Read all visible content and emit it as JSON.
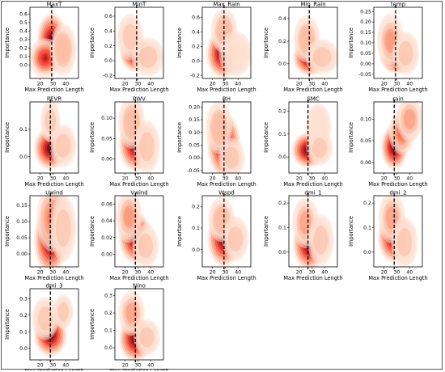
{
  "figure": {
    "xlabel": "Max Prediction Length",
    "ylabel": "Importance",
    "colormap": "Reds",
    "axis_color": "#000000",
    "dashed_line_color": "#000000"
  },
  "chart_data": [
    {
      "type": "kde-density",
      "title": "MaxT",
      "xticks": [
        20,
        30,
        40
      ],
      "yticks": [
        0.0,
        0.1,
        0.2,
        0.3,
        0.4,
        0.5,
        0.6
      ],
      "xlim": [
        12,
        50
      ],
      "ylim": [
        -0.16,
        0.68
      ],
      "vline_x": 29,
      "blobs": [
        {
          "x": 29,
          "y": 0.28,
          "sx": 4.5,
          "sy": 0.13,
          "w": 1.0
        },
        {
          "x": 24,
          "y": 0.08,
          "sx": 5,
          "sy": 0.09,
          "w": 0.8
        },
        {
          "x": 38,
          "y": 0.18,
          "sx": 4,
          "sy": 0.12,
          "w": 0.35
        }
      ]
    },
    {
      "type": "kde-density",
      "title": "MinT",
      "xticks": [
        20,
        30,
        40
      ],
      "yticks": [
        -0.2,
        0.0,
        0.2,
        0.4,
        0.6
      ],
      "xlim": [
        12,
        50
      ],
      "ylim": [
        -0.24,
        0.72
      ],
      "vline_x": 29,
      "blobs": [
        {
          "x": 29,
          "y": 0.08,
          "sx": 5,
          "sy": 0.09,
          "w": 1.0
        },
        {
          "x": 24,
          "y": 0.32,
          "sx": 4,
          "sy": 0.12,
          "w": 0.3
        },
        {
          "x": 38,
          "y": 0.05,
          "sx": 5,
          "sy": 0.1,
          "w": 0.3
        }
      ]
    },
    {
      "type": "kde-density",
      "title": "Max_Rain",
      "xticks": [
        20,
        30,
        40
      ],
      "yticks": [
        -0.2,
        0.0,
        0.2,
        0.4,
        0.6
      ],
      "xlim": [
        12,
        50
      ],
      "ylim": [
        -0.24,
        0.74
      ],
      "vline_x": 29,
      "blobs": [
        {
          "x": 28,
          "y": 0.1,
          "sx": 5,
          "sy": 0.13,
          "w": 1.0
        },
        {
          "x": 29,
          "y": 0.42,
          "sx": 4,
          "sy": 0.12,
          "w": 0.35
        },
        {
          "x": 38,
          "y": 0.1,
          "sx": 5,
          "sy": 0.12,
          "w": 0.25
        }
      ]
    },
    {
      "type": "kde-density",
      "title": "Min_Rain",
      "xticks": [
        20,
        30,
        40
      ],
      "yticks": [
        0.0,
        0.2,
        0.4
      ],
      "xlim": [
        12,
        50
      ],
      "ylim": [
        -0.13,
        0.5
      ],
      "vline_x": 28,
      "blobs": [
        {
          "x": 28,
          "y": 0.05,
          "sx": 5,
          "sy": 0.06,
          "w": 1.0
        },
        {
          "x": 26,
          "y": 0.22,
          "sx": 4,
          "sy": 0.08,
          "w": 0.35
        },
        {
          "x": 38,
          "y": 0.06,
          "sx": 5,
          "sy": 0.06,
          "w": 0.3
        }
      ]
    },
    {
      "type": "kde-density",
      "title": "temp",
      "xticks": [
        20,
        30,
        40
      ],
      "yticks": [
        -0.05,
        0.0,
        0.05,
        0.1,
        0.15,
        0.2,
        0.25
      ],
      "xlim": [
        12,
        50
      ],
      "ylim": [
        -0.07,
        0.27
      ],
      "vline_x": 29,
      "blobs": [
        {
          "x": 30,
          "y": 0.03,
          "sx": 5,
          "sy": 0.03,
          "w": 1.0
        },
        {
          "x": 25,
          "y": 0.11,
          "sx": 4,
          "sy": 0.05,
          "w": 0.45
        },
        {
          "x": 37,
          "y": 0.05,
          "sx": 4,
          "sy": 0.04,
          "w": 0.3
        }
      ]
    },
    {
      "type": "kde-density",
      "title": "PEVR",
      "xticks": [
        20,
        30,
        40
      ],
      "yticks": [
        0.0,
        0.1
      ],
      "xlim": [
        12,
        50
      ],
      "ylim": [
        -0.06,
        0.2
      ],
      "vline_x": 28,
      "blobs": [
        {
          "x": 28,
          "y": 0.03,
          "sx": 5,
          "sy": 0.03,
          "w": 1.0
        },
        {
          "x": 28,
          "y": 0.13,
          "sx": 3,
          "sy": 0.03,
          "w": 0.3
        },
        {
          "x": 38,
          "y": 0.04,
          "sx": 4,
          "sy": 0.03,
          "w": 0.3
        }
      ]
    },
    {
      "type": "kde-density",
      "title": "PWV",
      "xticks": [
        20,
        30,
        40
      ],
      "yticks": [
        0.0,
        0.05,
        0.1
      ],
      "xlim": [
        12,
        50
      ],
      "ylim": [
        -0.035,
        0.14
      ],
      "vline_x": 28,
      "blobs": [
        {
          "x": 28,
          "y": 0.035,
          "sx": 5,
          "sy": 0.025,
          "w": 1.0
        },
        {
          "x": 25,
          "y": 0.09,
          "sx": 4,
          "sy": 0.025,
          "w": 0.35
        },
        {
          "x": 37,
          "y": 0.03,
          "sx": 4,
          "sy": 0.025,
          "w": 0.3
        }
      ]
    },
    {
      "type": "kde-density",
      "title": "RH",
      "xticks": [
        20,
        30,
        40
      ],
      "yticks": [
        -0.05,
        0.0,
        0.05,
        0.1,
        0.15,
        0.2
      ],
      "xlim": [
        12,
        50
      ],
      "ylim": [
        -0.06,
        0.22
      ],
      "vline_x": 29,
      "blobs": [
        {
          "x": 29,
          "y": 0.05,
          "sx": 5,
          "sy": 0.05,
          "w": 1.0
        },
        {
          "x": 25,
          "y": 0.12,
          "sx": 4,
          "sy": 0.04,
          "w": 0.35
        },
        {
          "x": 35,
          "y": 0.0,
          "sx": 4,
          "sy": 0.03,
          "w": 0.3
        }
      ]
    },
    {
      "type": "kde-density",
      "title": "SMC",
      "xticks": [
        20,
        30,
        40
      ],
      "yticks": [
        0.0,
        0.1,
        0.2
      ],
      "xlim": [
        12,
        50
      ],
      "ylim": [
        -0.07,
        0.24
      ],
      "vline_x": 27,
      "blobs": [
        {
          "x": 27,
          "y": 0.03,
          "sx": 5,
          "sy": 0.03,
          "w": 1.0
        },
        {
          "x": 35,
          "y": 0.13,
          "sx": 4,
          "sy": 0.04,
          "w": 0.25
        },
        {
          "x": 36,
          "y": 0.04,
          "sx": 4,
          "sy": 0.03,
          "w": 0.3
        }
      ]
    },
    {
      "type": "kde-density",
      "title": "rain",
      "xticks": [
        20,
        30,
        40
      ],
      "yticks": [
        0.0,
        0.05,
        0.1
      ],
      "xlim": [
        12,
        50
      ],
      "ylim": [
        -0.025,
        0.14
      ],
      "vline_x": 28,
      "blobs": [
        {
          "x": 28,
          "y": 0.035,
          "sx": 4,
          "sy": 0.02,
          "w": 1.0
        },
        {
          "x": 34,
          "y": 0.07,
          "sx": 4,
          "sy": 0.02,
          "w": 0.6
        },
        {
          "x": 40,
          "y": 0.1,
          "sx": 4,
          "sy": 0.02,
          "w": 0.4
        }
      ]
    },
    {
      "type": "kde-density",
      "title": "Uwind",
      "xticks": [
        20,
        30,
        40
      ],
      "yticks": [
        0.0,
        0.05,
        0.1,
        0.15
      ],
      "xlim": [
        12,
        50
      ],
      "ylim": [
        -0.04,
        0.18
      ],
      "vline_x": 28,
      "blobs": [
        {
          "x": 28,
          "y": 0.04,
          "sx": 5,
          "sy": 0.04,
          "w": 1.0
        },
        {
          "x": 30,
          "y": 0.11,
          "sx": 5,
          "sy": 0.04,
          "w": 0.5
        },
        {
          "x": 38,
          "y": 0.08,
          "sx": 4,
          "sy": 0.04,
          "w": 0.3
        }
      ]
    },
    {
      "type": "kde-density",
      "title": "Vwind",
      "xticks": [
        20,
        30,
        40
      ],
      "yticks": [
        0.0,
        0.02,
        0.04,
        0.06
      ],
      "xlim": [
        12,
        50
      ],
      "ylim": [
        -0.015,
        0.07
      ],
      "vline_x": 28,
      "blobs": [
        {
          "x": 28,
          "y": 0.02,
          "sx": 5,
          "sy": 0.012,
          "w": 1.0
        },
        {
          "x": 23,
          "y": 0.045,
          "sx": 4,
          "sy": 0.012,
          "w": 0.45
        },
        {
          "x": 36,
          "y": 0.01,
          "sx": 4,
          "sy": 0.01,
          "w": 0.3
        }
      ]
    },
    {
      "type": "kde-density",
      "title": "Wspd",
      "xticks": [
        20,
        30,
        40
      ],
      "yticks": [
        0.0,
        0.1,
        0.2
      ],
      "xlim": [
        12,
        50
      ],
      "ylim": [
        -0.08,
        0.25
      ],
      "vline_x": 29,
      "blobs": [
        {
          "x": 29,
          "y": 0.05,
          "sx": 5,
          "sy": 0.05,
          "w": 1.0
        },
        {
          "x": 27,
          "y": 0.14,
          "sx": 4,
          "sy": 0.04,
          "w": 0.35
        },
        {
          "x": 38,
          "y": 0.05,
          "sx": 4,
          "sy": 0.04,
          "w": 0.3
        }
      ]
    },
    {
      "type": "kde-density",
      "title": "dmi_1",
      "xticks": [
        20,
        30,
        40
      ],
      "yticks": [
        0.0,
        0.1,
        0.2
      ],
      "xlim": [
        12,
        50
      ],
      "ylim": [
        -0.06,
        0.23
      ],
      "vline_x": 27,
      "blobs": [
        {
          "x": 28,
          "y": 0.03,
          "sx": 5,
          "sy": 0.04,
          "w": 1.0
        },
        {
          "x": 25,
          "y": 0.12,
          "sx": 4,
          "sy": 0.04,
          "w": 0.4
        },
        {
          "x": 37,
          "y": 0.05,
          "sx": 4,
          "sy": 0.04,
          "w": 0.3
        }
      ]
    },
    {
      "type": "kde-density",
      "title": "dmi_2",
      "xticks": [
        20,
        30,
        40
      ],
      "yticks": [
        0.0,
        0.1,
        0.2
      ],
      "xlim": [
        12,
        50
      ],
      "ylim": [
        -0.06,
        0.23
      ],
      "vline_x": 28,
      "blobs": [
        {
          "x": 28,
          "y": 0.06,
          "sx": 5,
          "sy": 0.04,
          "w": 1.0
        },
        {
          "x": 26,
          "y": 0.14,
          "sx": 4,
          "sy": 0.04,
          "w": 0.4
        },
        {
          "x": 36,
          "y": 0.04,
          "sx": 4,
          "sy": 0.04,
          "w": 0.3
        }
      ]
    },
    {
      "type": "kde-density",
      "title": "dmi_3",
      "xticks": [
        20,
        30,
        40
      ],
      "yticks": [
        0.0,
        0.1,
        0.2,
        0.3
      ],
      "xlim": [
        12,
        50
      ],
      "ylim": [
        -0.07,
        0.36
      ],
      "vline_x": 28,
      "blobs": [
        {
          "x": 28,
          "y": 0.08,
          "sx": 5,
          "sy": 0.05,
          "w": 1.0
        },
        {
          "x": 38,
          "y": 0.22,
          "sx": 3,
          "sy": 0.04,
          "w": 0.3
        },
        {
          "x": 24,
          "y": 0.18,
          "sx": 4,
          "sy": 0.05,
          "w": 0.3
        }
      ]
    },
    {
      "type": "kde-density",
      "title": "Nino",
      "xticks": [
        20,
        30,
        40
      ],
      "yticks": [
        0.0,
        0.1,
        0.2,
        0.3
      ],
      "xlim": [
        12,
        50
      ],
      "ylim": [
        -0.07,
        0.34
      ],
      "vline_x": 28,
      "blobs": [
        {
          "x": 28,
          "y": 0.05,
          "sx": 5,
          "sy": 0.05,
          "w": 1.0
        },
        {
          "x": 25,
          "y": 0.2,
          "sx": 4,
          "sy": 0.05,
          "w": 0.4
        },
        {
          "x": 37,
          "y": 0.06,
          "sx": 4,
          "sy": 0.04,
          "w": 0.3
        }
      ]
    }
  ]
}
